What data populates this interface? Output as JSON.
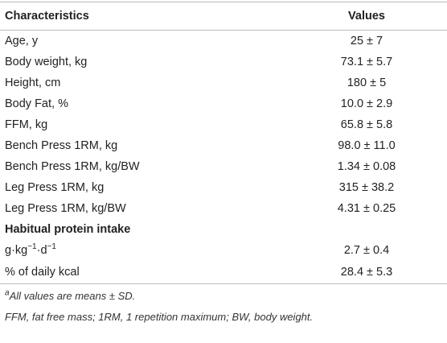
{
  "table": {
    "header": [
      "Characteristics",
      "Values"
    ],
    "rows": [
      [
        "Age, y",
        "25 ± 7"
      ],
      [
        "Body weight, kg",
        "73.1 ± 5.7"
      ],
      [
        "Height, cm",
        "180 ± 5"
      ],
      [
        "Body Fat, %",
        "10.0 ± 2.9"
      ],
      [
        "FFM, kg",
        "65.8 ± 5.8"
      ],
      [
        "Bench Press 1RM, kg",
        "98.0 ± 11.0"
      ],
      [
        "Bench Press 1RM, kg/BW",
        "1.34 ± 0.08"
      ],
      [
        "Leg Press 1RM, kg",
        "315 ± 38.2"
      ],
      [
        "Leg Press 1RM, kg/BW",
        "4.31 ± 0.25"
      ]
    ],
    "section": "Habitual protein intake",
    "section_rows": [
      {
        "label_parts": [
          "g·kg",
          "−1",
          "·d",
          "−1"
        ],
        "value": "2.7 ± 0.4"
      },
      {
        "label": "% of daily kcal",
        "value": "28.4 ± 5.3"
      }
    ]
  },
  "footnotes": [
    {
      "marker": "a",
      "text": "All values are means ± SD."
    },
    "FFM, fat free mass; 1RM, 1 repetition maximum; BW, body weight."
  ]
}
